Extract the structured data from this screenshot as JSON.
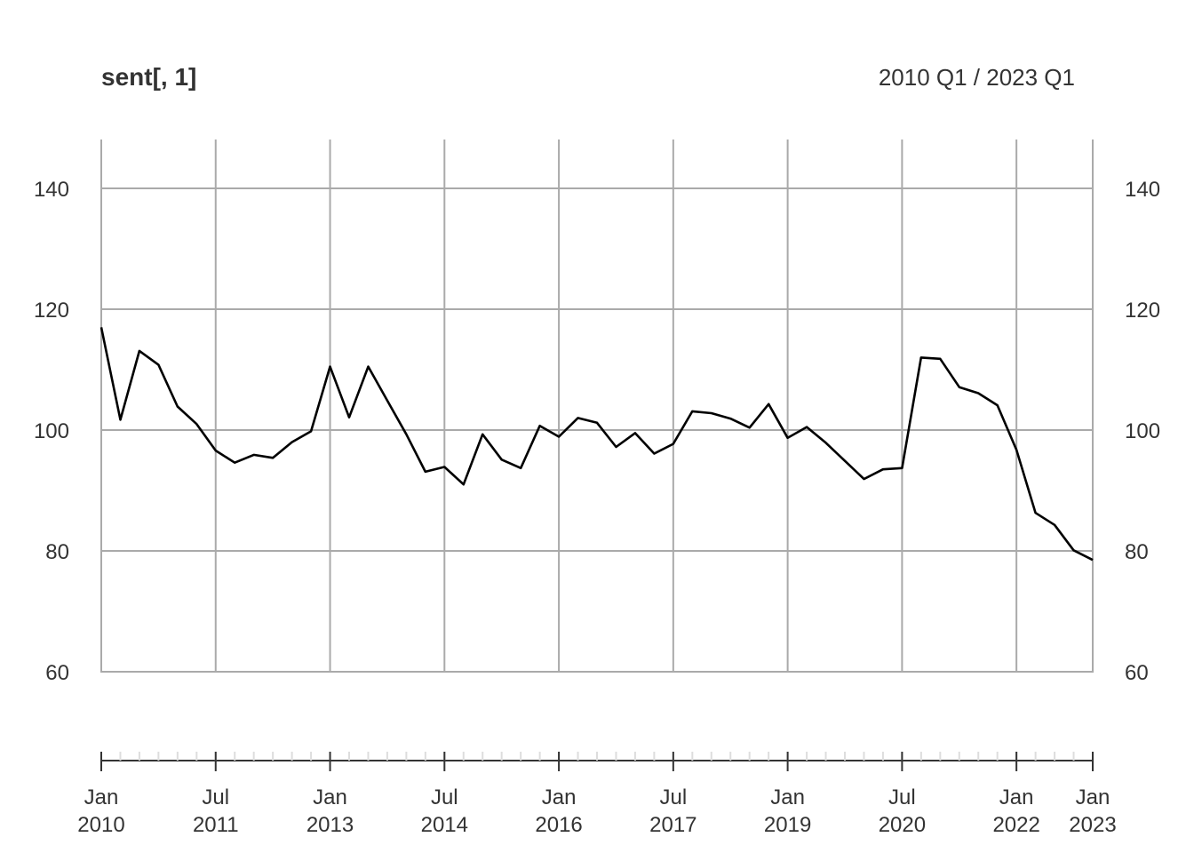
{
  "chart_data": {
    "type": "line",
    "title": "sent[, 1]",
    "date_range_label": "2010 Q1 / 2023 Q1",
    "ylim": [
      60,
      140
    ],
    "y_ticks": [
      60,
      80,
      100,
      120,
      140
    ],
    "grid": true,
    "x_tick_labels": [
      {
        "x": "2010-01",
        "line1": "Jan",
        "line2": "2010"
      },
      {
        "x": "2011-07",
        "line1": "Jul",
        "line2": "2011"
      },
      {
        "x": "2013-01",
        "line1": "Jan",
        "line2": "2013"
      },
      {
        "x": "2014-07",
        "line1": "Jul",
        "line2": "2014"
      },
      {
        "x": "2016-01",
        "line1": "Jan",
        "line2": "2016"
      },
      {
        "x": "2017-07",
        "line1": "Jul",
        "line2": "2017"
      },
      {
        "x": "2019-01",
        "line1": "Jan",
        "line2": "2019"
      },
      {
        "x": "2020-07",
        "line1": "Jul",
        "line2": "2020"
      },
      {
        "x": "2022-01",
        "line1": "Jan",
        "line2": "2022"
      },
      {
        "x": "2023-01",
        "line1": "Jan",
        "line2": "2023"
      }
    ],
    "series": [
      {
        "color": "#000000",
        "x": [
          "2010 Q1",
          "2010 Q2",
          "2010 Q3",
          "2010 Q4",
          "2011 Q1",
          "2011 Q2",
          "2011 Q3",
          "2011 Q4",
          "2012 Q1",
          "2012 Q2",
          "2012 Q3",
          "2012 Q4",
          "2013 Q1",
          "2013 Q2",
          "2013 Q3",
          "2013 Q4",
          "2014 Q1",
          "2014 Q2",
          "2014 Q3",
          "2014 Q4",
          "2015 Q1",
          "2015 Q2",
          "2015 Q3",
          "2015 Q4",
          "2016 Q1",
          "2016 Q2",
          "2016 Q3",
          "2016 Q4",
          "2017 Q1",
          "2017 Q2",
          "2017 Q3",
          "2017 Q4",
          "2018 Q1",
          "2018 Q2",
          "2018 Q3",
          "2018 Q4",
          "2019 Q1",
          "2019 Q2",
          "2019 Q3",
          "2019 Q4",
          "2020 Q1",
          "2020 Q2",
          "2020 Q3",
          "2020 Q4",
          "2021 Q1",
          "2021 Q2",
          "2021 Q3",
          "2021 Q4",
          "2022 Q1",
          "2022 Q2",
          "2022 Q3",
          "2022 Q4",
          "2023 Q1"
        ],
        "values": [
          117.0,
          101.7,
          113.1,
          110.8,
          103.9,
          101.0,
          96.6,
          94.6,
          95.9,
          95.4,
          98.0,
          99.8,
          110.5,
          102.1,
          110.5,
          104.9,
          99.3,
          93.1,
          93.9,
          91.0,
          99.3,
          95.1,
          93.7,
          100.7,
          98.9,
          102.0,
          101.2,
          97.2,
          99.5,
          96.1,
          97.7,
          103.1,
          102.8,
          101.9,
          100.4,
          104.3,
          98.7,
          100.5,
          97.9,
          94.9,
          91.9,
          93.5,
          93.7,
          112.0,
          111.8,
          107.1,
          106.1,
          104.1,
          96.7,
          86.3,
          84.3,
          80.1,
          78.5
        ]
      }
    ]
  }
}
